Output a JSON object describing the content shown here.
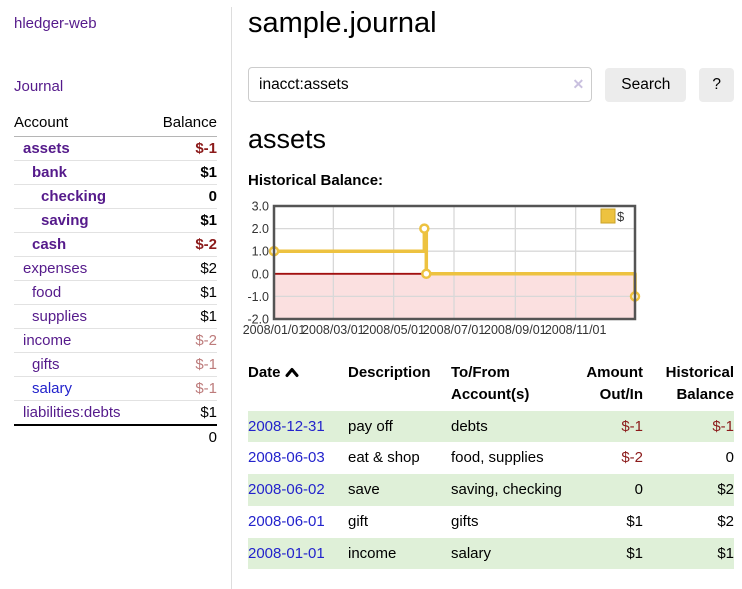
{
  "app": {
    "brand": "hledger-web",
    "nav_journal": "Journal"
  },
  "sidebar": {
    "accounts_header": {
      "account": "Account",
      "balance": "Balance"
    },
    "accounts": [
      {
        "name": "assets",
        "depth": 0,
        "bold": true,
        "balance": "$-1",
        "balance_class": "neg",
        "link": "purple"
      },
      {
        "name": "bank",
        "depth": 1,
        "bold": true,
        "balance": "$1",
        "balance_class": "",
        "link": "purple"
      },
      {
        "name": "checking",
        "depth": 2,
        "bold": true,
        "balance": "0",
        "balance_class": "",
        "link": "purple"
      },
      {
        "name": "saving",
        "depth": 2,
        "bold": true,
        "balance": "$1",
        "balance_class": "",
        "link": "purple"
      },
      {
        "name": "cash",
        "depth": 1,
        "bold": true,
        "balance": "$-2",
        "balance_class": "neg",
        "link": "purple"
      },
      {
        "name": "expenses",
        "depth": 0,
        "bold": false,
        "balance": "$2",
        "balance_class": "",
        "link": "purple"
      },
      {
        "name": "food",
        "depth": 1,
        "bold": false,
        "balance": "$1",
        "balance_class": "",
        "link": "purple"
      },
      {
        "name": "supplies",
        "depth": 1,
        "bold": false,
        "balance": "$1",
        "balance_class": "",
        "link": "purple"
      },
      {
        "name": "income",
        "depth": 0,
        "bold": false,
        "balance": "$-2",
        "balance_class": "negmuted",
        "link": "purple"
      },
      {
        "name": "gifts",
        "depth": 1,
        "bold": false,
        "balance": "$-1",
        "balance_class": "negmuted",
        "link": "purple"
      },
      {
        "name": "salary",
        "depth": 1,
        "bold": false,
        "balance": "$-1",
        "balance_class": "negmuted",
        "link": "blue"
      },
      {
        "name": "liabilities:debts",
        "depth": 0,
        "bold": false,
        "balance": "$1",
        "balance_class": "",
        "link": "purple"
      }
    ],
    "total": "0"
  },
  "header": {
    "title": "sample.journal",
    "search": {
      "value": "inacct:assets",
      "clear_glyph": "✕",
      "button_label": "Search",
      "help_label": "?"
    }
  },
  "main": {
    "account_title": "assets",
    "chart_label": "Historical Balance:"
  },
  "chart_data": {
    "type": "line",
    "step": true,
    "title": "Historical Balance",
    "xlim": [
      "2008-01-01",
      "2008-12-31"
    ],
    "ylim": [
      -2,
      3
    ],
    "yticks": [
      3,
      2,
      1,
      0,
      -1,
      -2
    ],
    "ytick_labels": [
      "3.0",
      "2.0",
      "1.0",
      "0.0",
      "-1.0",
      "-2.0"
    ],
    "xticks": [
      "2008-01-01",
      "2008-03-01",
      "2008-05-01",
      "2008-07-01",
      "2008-09-01",
      "2008-11-01"
    ],
    "xtick_labels": [
      "2008/01/01",
      "2008/03/01",
      "2008/05/01",
      "2008/07/01",
      "2008/09/01",
      "2008/11/01"
    ],
    "series": [
      {
        "name": "$",
        "color": "#edc240",
        "points": [
          [
            "2008-01-01",
            1
          ],
          [
            "2008-06-01",
            2
          ],
          [
            "2008-06-03",
            0
          ],
          [
            "2008-12-31",
            -1
          ]
        ]
      }
    ],
    "grid_on": true,
    "grid_color": "#d8d8d8",
    "border_color": "#545454",
    "zero_line_color": "#a21010",
    "negative_region_color": "#fbe0e0",
    "legend": {
      "label": "$",
      "position": "top-right",
      "swatch_color": "#edc240",
      "swatch_border": "#c9a227"
    }
  },
  "transactions": {
    "headers": {
      "date": "Date",
      "description": "Description",
      "accounts": "To/From Account(s)",
      "amount": "Amount Out/In",
      "balance": "Historical Balance"
    },
    "rows": [
      {
        "date": "2008-12-31",
        "description": "pay off",
        "accounts": "debts",
        "amount": "$-1",
        "amount_class": "neg",
        "balance": "$-1",
        "balance_class": "neg"
      },
      {
        "date": "2008-06-03",
        "description": "eat & shop",
        "accounts": "food, supplies",
        "amount": "$-2",
        "amount_class": "neg",
        "balance": "0",
        "balance_class": ""
      },
      {
        "date": "2008-06-02",
        "description": "save",
        "accounts": "saving, checking",
        "amount": "0",
        "amount_class": "",
        "balance": "$2",
        "balance_class": ""
      },
      {
        "date": "2008-06-01",
        "description": "gift",
        "accounts": "gifts",
        "amount": "$1",
        "amount_class": "",
        "balance": "$2",
        "balance_class": ""
      },
      {
        "date": "2008-01-01",
        "description": "income",
        "accounts": "salary",
        "amount": "$1",
        "amount_class": "",
        "balance": "$1",
        "balance_class": ""
      }
    ]
  },
  "colors": {
    "link_purple": "#551a8b",
    "link_blue": "#2323cc",
    "negative_strong": "#8b1a1a",
    "negative_muted": "#bd7b7b",
    "row_shade_green": "#dff0d8",
    "series_yellow": "#edc240"
  }
}
